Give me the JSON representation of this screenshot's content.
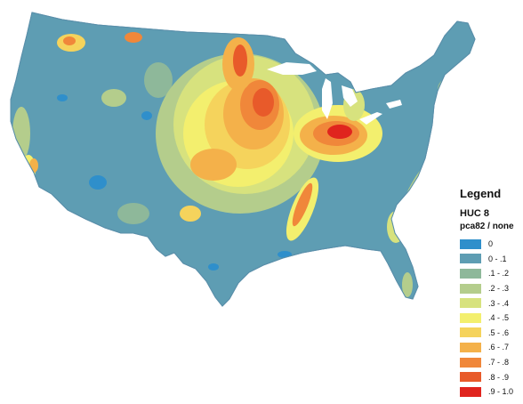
{
  "legend": {
    "title": "Legend",
    "layer": "HUC 8",
    "field": "pca82 / none",
    "classes": [
      {
        "label": "0",
        "color": "#2f8fcb"
      },
      {
        "label": "0 - .1",
        "color": "#5e9db3"
      },
      {
        "label": ".1 - .2",
        "color": "#8eb89a"
      },
      {
        "label": ".2 - .3",
        "color": "#b4cd8c"
      },
      {
        "label": ".3 - .4",
        "color": "#d7e27e"
      },
      {
        "label": ".4 - .5",
        "color": "#f3ef6e"
      },
      {
        "label": ".5 - .6",
        "color": "#f5d35c"
      },
      {
        "label": ".6 - .7",
        "color": "#f4b14a"
      },
      {
        "label": ".7 - .8",
        "color": "#f0873a"
      },
      {
        "label": ".8 - .9",
        "color": "#e85a2a"
      },
      {
        "label": ".9 - 1.0",
        "color": "#e0241e"
      }
    ]
  }
}
